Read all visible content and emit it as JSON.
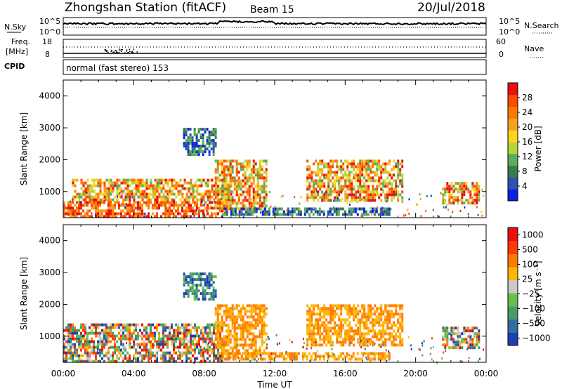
{
  "header": {
    "station": "Zhongshan Station (fitACF)",
    "beam": "Beam 15",
    "date": "20/Jul/2018"
  },
  "status_panels": {
    "nsky": {
      "label": "N.Sky",
      "left_ticks": [
        "10^5",
        "10^0"
      ],
      "right_ticks": [
        "10^5",
        "10^0"
      ],
      "right_label": "N.Search"
    },
    "freq": {
      "label_line1": "Freq.",
      "label_line2": "[MHz]",
      "left_ticks": [
        "18",
        "8"
      ],
      "right_ticks": [
        "60",
        "0"
      ],
      "right_label": "Nave"
    },
    "cpid": {
      "label": "CPID",
      "text": "normal (fast stereo) 153"
    }
  },
  "x_axis": {
    "ticks": [
      "00:00",
      "04:00",
      "08:00",
      "12:00",
      "16:00",
      "20:00",
      "00:00"
    ],
    "label": "Time UT"
  },
  "chart_data": [
    {
      "type": "heatmap",
      "ylabel": "Slant Range [km]",
      "yticks": [
        "1000",
        "2000",
        "3000",
        "4000"
      ],
      "ylim": [
        180,
        4500
      ],
      "xlim_hours": [
        0,
        24
      ],
      "colorbar": {
        "label": "Power [dB]",
        "ticks": [
          "4",
          "8",
          "12",
          "16",
          "20",
          "24",
          "28"
        ],
        "colors": [
          "#0a22e0",
          "#2f4fb5",
          "#3a7a4d",
          "#5aae5a",
          "#b4d63a",
          "#ffd21e",
          "#f4a21e",
          "#ff7a00",
          "#ff4a00",
          "#e81010"
        ]
      },
      "regions": [
        {
          "t": [
            0.0,
            9.0
          ],
          "r": [
            250,
            700
          ],
          "level": "high"
        },
        {
          "t": [
            0.5,
            9.5
          ],
          "r": [
            700,
            1400
          ],
          "level": "mid"
        },
        {
          "t": [
            6.8,
            8.6
          ],
          "r": [
            2200,
            3000
          ],
          "level": "low"
        },
        {
          "t": [
            8.6,
            11.5
          ],
          "r": [
            500,
            2000
          ],
          "level": "mid"
        },
        {
          "t": [
            9.0,
            18.5
          ],
          "r": [
            250,
            500
          ],
          "level": "low"
        },
        {
          "t": [
            13.8,
            19.2
          ],
          "r": [
            700,
            2000
          ],
          "level": "mid"
        },
        {
          "t": [
            21.5,
            23.6
          ],
          "r": [
            600,
            1300
          ],
          "level": "mid"
        }
      ]
    },
    {
      "type": "heatmap",
      "ylabel": "Slant Range [km]",
      "yticks": [
        "1000",
        "2000",
        "3000",
        "4000"
      ],
      "ylim": [
        180,
        4500
      ],
      "xlim_hours": [
        0,
        24
      ],
      "colorbar": {
        "label": "Velocity [m s⁻¹]",
        "ticks": [
          "1000",
          "500",
          "100",
          "25",
          "−25",
          "−100",
          "−500",
          "−1000"
        ],
        "colors": [
          "#1f3fb0",
          "#2f6fa0",
          "#4a9a6a",
          "#66c04a",
          "#c8c8c8",
          "#ffb400",
          "#ff7a00",
          "#ff3a00",
          "#e81010"
        ]
      },
      "regions": [
        {
          "t": [
            0.0,
            9.0
          ],
          "r": [
            250,
            1400
          ],
          "level": "mixed"
        },
        {
          "t": [
            8.6,
            11.5
          ],
          "r": [
            500,
            2000
          ],
          "level": "negative"
        },
        {
          "t": [
            6.8,
            8.6
          ],
          "r": [
            2200,
            3000
          ],
          "level": "low"
        },
        {
          "t": [
            9.0,
            18.5
          ],
          "r": [
            250,
            500
          ],
          "level": "negative"
        },
        {
          "t": [
            13.8,
            19.2
          ],
          "r": [
            700,
            2000
          ],
          "level": "negative"
        },
        {
          "t": [
            21.5,
            23.6
          ],
          "r": [
            600,
            1300
          ],
          "level": "mixed"
        }
      ]
    }
  ]
}
